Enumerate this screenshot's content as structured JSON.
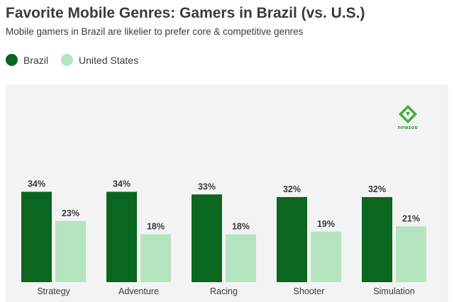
{
  "header": {
    "title": "Favorite Mobile Genres: Gamers in Brazil (vs. U.S.)",
    "subtitle": "Mobile gamers in Brazil are likelier to prefer core & competitive genres"
  },
  "logo": {
    "text": "newzoo",
    "icon": "newzoo-logo-icon"
  },
  "colors": {
    "brazil": "#0b6620",
    "us": "#b5e4c0",
    "panel": "#f3f3f3"
  },
  "chart_data": {
    "type": "bar",
    "categories": [
      "Strategy",
      "Adventure",
      "Racing",
      "Shooter",
      "Simulation"
    ],
    "series": [
      {
        "name": "Brazil",
        "values": [
          34,
          34,
          33,
          32,
          32
        ],
        "labels": [
          "34%",
          "34%",
          "33%",
          "32%",
          "32%"
        ]
      },
      {
        "name": "United States",
        "values": [
          23,
          18,
          18,
          19,
          21
        ],
        "labels": [
          "23%",
          "18%",
          "18%",
          "19%",
          "21%"
        ]
      }
    ],
    "title": "Favorite Mobile Genres: Gamers in Brazil (vs. U.S.)",
    "subtitle": "Mobile gamers in Brazil are likelier to prefer core & competitive genres",
    "ylim": [
      0,
      40
    ],
    "grid": false,
    "legend_position": "top-left"
  }
}
